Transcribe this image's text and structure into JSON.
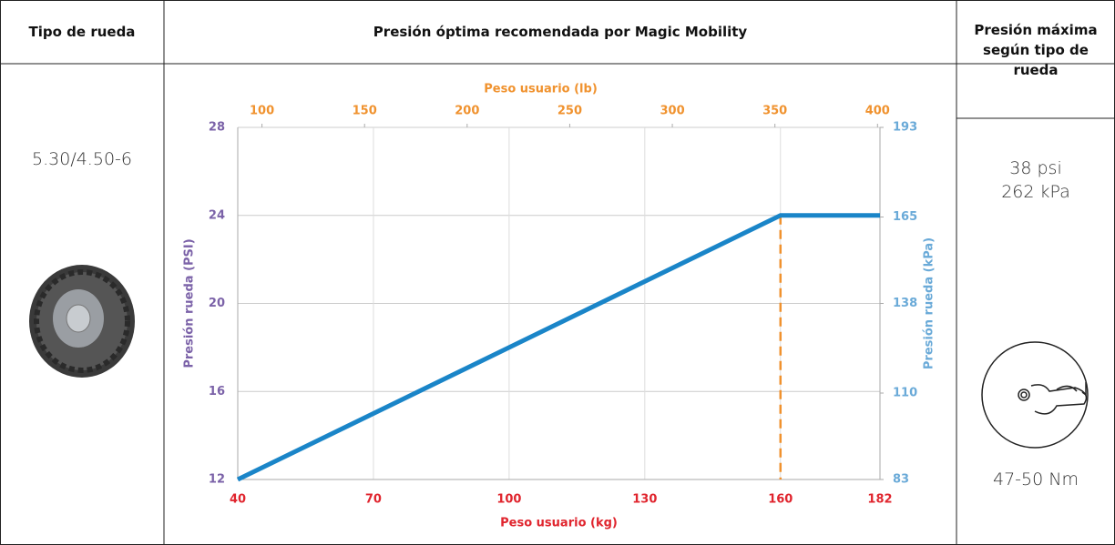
{
  "table": {
    "headers": [
      "Tipo de rueda",
      "Presión óptima recomendada por Magic Mobility",
      "Presión máxima según tipo de rueda"
    ],
    "tire_size": "5.30/4.50-6",
    "max_pressure": [
      "38 psi",
      "262 kPa"
    ],
    "torque": "47-50 Nm"
  },
  "chart_data": {
    "type": "line",
    "xlabel": "Peso usuario (kg)",
    "x2label": "Peso usuario (lb)",
    "ylabel": "Presión rueda (PSI)",
    "y2label": "Presión rueda (kPa)",
    "x": [
      40,
      160,
      182
    ],
    "series": [
      {
        "name": null,
        "color": "#1a85c8",
        "values": [
          12,
          24,
          24
        ]
      }
    ],
    "xlim": [
      40,
      182
    ],
    "xticks": [
      40,
      70,
      100,
      130,
      160,
      182
    ],
    "x2lim": [
      88.2,
      401.2
    ],
    "x2ticks": [
      100,
      150,
      200,
      250,
      300,
      350,
      400
    ],
    "ylim": [
      12,
      28
    ],
    "yticks": [
      12,
      16,
      20,
      24,
      28
    ],
    "y2lim": [
      83,
      193
    ],
    "y2ticks": [
      83,
      110,
      138,
      165,
      193
    ],
    "reference_line": {
      "x": 160,
      "color": "#f0922e"
    },
    "grid": true
  }
}
